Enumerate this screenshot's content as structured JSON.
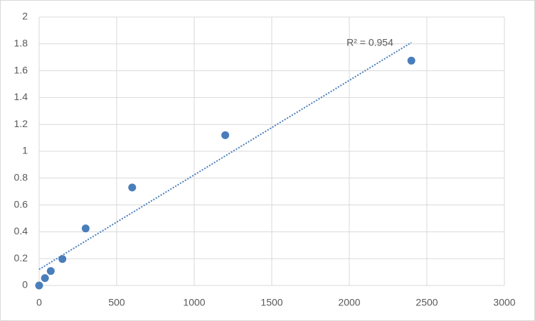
{
  "chart_data": {
    "type": "scatter",
    "x": [
      0,
      37.5,
      75,
      150,
      300,
      600,
      1200,
      2400
    ],
    "values": [
      0,
      0.055,
      0.108,
      0.197,
      0.425,
      0.73,
      1.12,
      1.675
    ],
    "color": "#4a7ebb",
    "xlim": [
      0,
      3000
    ],
    "xticks": [
      0,
      500,
      1000,
      1500,
      2000,
      2500,
      3000
    ],
    "ylim": [
      0,
      2
    ],
    "yticks": [
      0,
      0.2,
      0.4,
      0.6,
      0.8,
      1,
      1.2,
      1.4,
      1.6,
      1.8,
      2
    ],
    "grid": true,
    "trendline": {
      "x": [
        0,
        2400
      ],
      "y": [
        0.12,
        1.81
      ],
      "color": "#4a7ebb"
    },
    "annotation": "R² = 0.954"
  }
}
